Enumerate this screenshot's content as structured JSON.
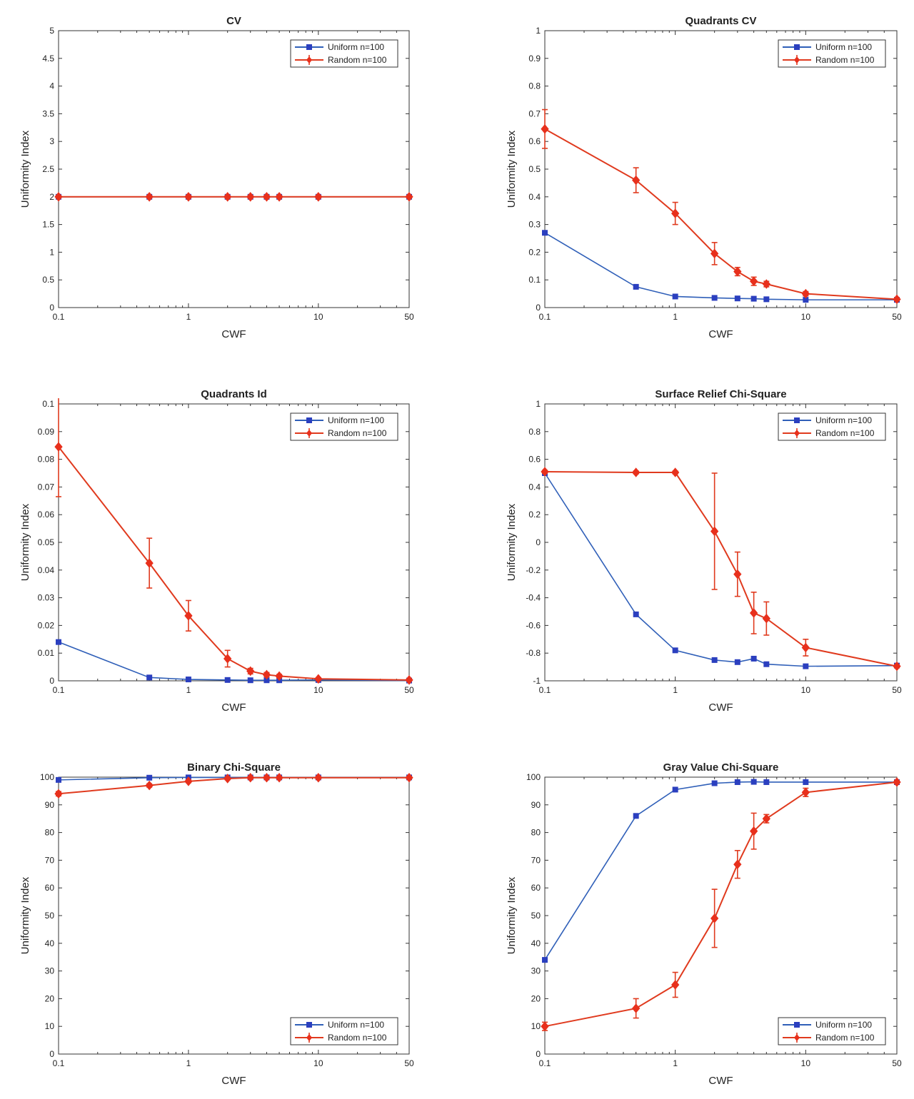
{
  "figure": {
    "x_ticks": [
      0.1,
      1,
      10,
      50
    ],
    "x_tick_labels": [
      "0.1",
      "1",
      "10",
      "50"
    ],
    "xlabel": "CWF",
    "ylabel": "Uniformity Index",
    "colors": {
      "uniform": "#2f5fb8",
      "random": "#e03a1e",
      "uniform_marker": "#2b3fbf",
      "random_marker": "#e8301c"
    }
  },
  "chart_data": [
    {
      "type": "line",
      "title": "CV",
      "xlabel": "CWF",
      "ylabel": "Uniformity Index",
      "xscale": "log",
      "xlim": [
        0.1,
        50
      ],
      "ylim": [
        0,
        5
      ],
      "y_ticks": [
        0,
        0.5,
        1,
        1.5,
        2,
        2.5,
        3,
        3.5,
        4,
        4.5,
        5
      ],
      "legend_position": "top-right",
      "series": [
        {
          "name": "Uniform n=100",
          "x": [
            0.1,
            0.5,
            1,
            2,
            3,
            4,
            5,
            10,
            50
          ],
          "y": [
            2,
            2,
            2,
            2,
            2,
            2,
            2,
            2,
            2
          ]
        },
        {
          "name": "Random n=100",
          "x": [
            0.1,
            0.5,
            1,
            2,
            3,
            4,
            5,
            10,
            50
          ],
          "y": [
            2,
            2,
            2,
            2,
            2,
            2,
            2,
            2,
            2
          ],
          "err": [
            0,
            0,
            0,
            0,
            0,
            0,
            0,
            0,
            0
          ]
        }
      ]
    },
    {
      "type": "line",
      "title": "Quadrants CV",
      "xlabel": "CWF",
      "ylabel": "Uniformity Index",
      "xscale": "log",
      "xlim": [
        0.1,
        50
      ],
      "ylim": [
        0,
        1
      ],
      "y_ticks": [
        0,
        0.1,
        0.2,
        0.3,
        0.4,
        0.5,
        0.6,
        0.7,
        0.8,
        0.9,
        1
      ],
      "legend_position": "top-right",
      "series": [
        {
          "name": "Uniform n=100",
          "x": [
            0.1,
            0.5,
            1,
            2,
            3,
            4,
            5,
            10,
            50
          ],
          "y": [
            0.27,
            0.075,
            0.04,
            0.035,
            0.033,
            0.032,
            0.03,
            0.028,
            0.028
          ]
        },
        {
          "name": "Random n=100",
          "x": [
            0.1,
            0.5,
            1,
            2,
            3,
            4,
            5,
            10,
            50
          ],
          "y": [
            0.645,
            0.46,
            0.34,
            0.195,
            0.13,
            0.095,
            0.085,
            0.05,
            0.03
          ],
          "err": [
            0.07,
            0.045,
            0.04,
            0.04,
            0.015,
            0.015,
            0.01,
            0.008,
            0.004
          ]
        }
      ]
    },
    {
      "type": "line",
      "title": "Quadrants Id",
      "xlabel": "CWF",
      "ylabel": "Uniformity Index",
      "xscale": "log",
      "xlim": [
        0.1,
        50
      ],
      "ylim": [
        0,
        0.1
      ],
      "y_ticks": [
        0,
        0.01,
        0.02,
        0.03,
        0.04,
        0.05,
        0.06,
        0.07,
        0.08,
        0.09,
        0.1
      ],
      "legend_position": "top-right",
      "series": [
        {
          "name": "Uniform n=100",
          "x": [
            0.1,
            0.5,
            1,
            2,
            3,
            4,
            5,
            10,
            50
          ],
          "y": [
            0.014,
            0.0012,
            0.0005,
            0.0003,
            0.0002,
            0.0002,
            0.0002,
            0.0003,
            0.0001
          ]
        },
        {
          "name": "Random n=100",
          "x": [
            0.1,
            0.5,
            1,
            2,
            3,
            4,
            5,
            10,
            50
          ],
          "y": [
            0.0845,
            0.0425,
            0.0235,
            0.008,
            0.0035,
            0.0022,
            0.0017,
            0.0007,
            0.0003
          ],
          "err": [
            0.018,
            0.009,
            0.0055,
            0.003,
            0.001,
            0.0008,
            0.0006,
            0.0003,
            0.0001
          ]
        }
      ]
    },
    {
      "type": "line",
      "title": "Surface Relief Chi-Square",
      "xlabel": "CWF",
      "ylabel": "Uniformity Index",
      "xscale": "log",
      "xlim": [
        0.1,
        50
      ],
      "ylim": [
        -1,
        1
      ],
      "y_ticks": [
        -1,
        -0.8,
        -0.6,
        -0.4,
        -0.2,
        0,
        0.2,
        0.4,
        0.6,
        0.8,
        1
      ],
      "legend_position": "top-right",
      "series": [
        {
          "name": "Uniform n=100",
          "x": [
            0.1,
            0.5,
            1,
            2,
            3,
            4,
            5,
            10,
            50
          ],
          "y": [
            0.5,
            -0.52,
            -0.78,
            -0.85,
            -0.865,
            -0.84,
            -0.88,
            -0.895,
            -0.89
          ]
        },
        {
          "name": "Random n=100",
          "x": [
            0.1,
            0.5,
            1,
            2,
            3,
            4,
            5,
            10,
            50
          ],
          "y": [
            0.51,
            0.505,
            0.505,
            0.08,
            -0.23,
            -0.51,
            -0.55,
            -0.76,
            -0.895
          ],
          "err": [
            0.01,
            0.01,
            0.01,
            0.42,
            0.16,
            0.15,
            0.12,
            0.06,
            0.01
          ]
        }
      ]
    },
    {
      "type": "line",
      "title": "Binary Chi-Square",
      "xlabel": "CWF",
      "ylabel": "Uniformity Index",
      "xscale": "log",
      "xlim": [
        0.1,
        50
      ],
      "ylim": [
        0,
        100
      ],
      "y_ticks": [
        0,
        10,
        20,
        30,
        40,
        50,
        60,
        70,
        80,
        90,
        100
      ],
      "legend_position": "bottom-right",
      "series": [
        {
          "name": "Uniform n=100",
          "x": [
            0.1,
            0.5,
            1,
            2,
            3,
            4,
            5,
            10,
            50
          ],
          "y": [
            99,
            99.8,
            99.9,
            99.9,
            99.9,
            99.9,
            99.9,
            99.9,
            99.9
          ]
        },
        {
          "name": "Random n=100",
          "x": [
            0.1,
            0.5,
            1,
            2,
            3,
            4,
            5,
            10,
            50
          ],
          "y": [
            94,
            97,
            98.5,
            99.5,
            99.8,
            99.8,
            99.8,
            99.8,
            99.8
          ],
          "err": [
            0.8,
            0.6,
            0.5,
            0.4,
            0.2,
            0.2,
            0.2,
            0.1,
            0.1
          ]
        }
      ]
    },
    {
      "type": "line",
      "title": "Gray Value Chi-Square",
      "xlabel": "CWF",
      "ylabel": "Uniformity Index",
      "xscale": "log",
      "xlim": [
        0.1,
        50
      ],
      "ylim": [
        0,
        100
      ],
      "y_ticks": [
        0,
        10,
        20,
        30,
        40,
        50,
        60,
        70,
        80,
        90,
        100
      ],
      "legend_position": "bottom-right",
      "series": [
        {
          "name": "Uniform n=100",
          "x": [
            0.1,
            0.5,
            1,
            2,
            3,
            4,
            5,
            10,
            50
          ],
          "y": [
            34,
            86,
            95.5,
            97.8,
            98.2,
            98.3,
            98.2,
            98.2,
            98.2
          ]
        },
        {
          "name": "Random n=100",
          "x": [
            0.1,
            0.5,
            1,
            2,
            3,
            4,
            5,
            10,
            50
          ],
          "y": [
            10,
            16.5,
            25,
            49,
            68.5,
            80.5,
            85,
            94.5,
            98.2
          ],
          "err": [
            1.5,
            3.5,
            4.5,
            10.5,
            5,
            6.5,
            1.5,
            1.5,
            0.5
          ]
        }
      ]
    }
  ]
}
